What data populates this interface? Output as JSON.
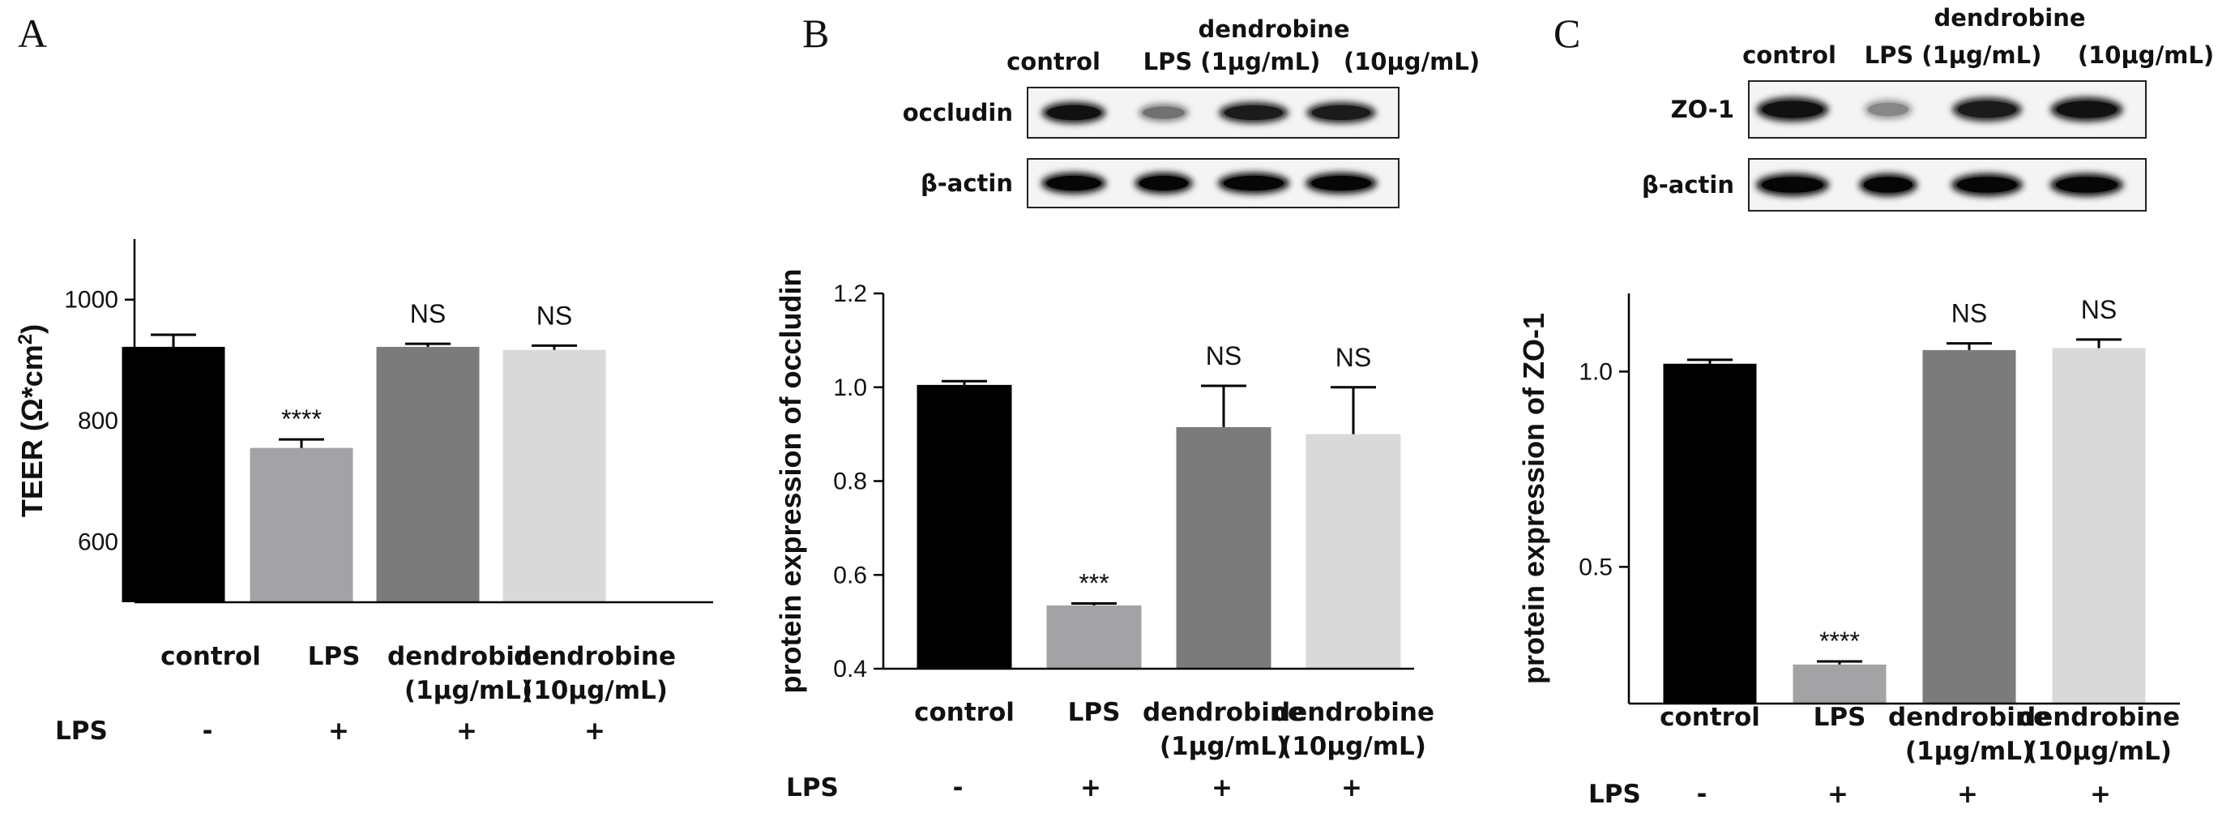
{
  "panels": [
    {
      "letter": "A"
    },
    {
      "letter": "B"
    },
    {
      "letter": "C"
    }
  ],
  "blots": [
    {
      "header": {
        "control": "control",
        "lps": "LPS (1μg/mL)",
        "d1_top": "dendrobine",
        "d2": "(10μg/mL)"
      },
      "rows": [
        "occludin",
        "β-actin"
      ],
      "band_intensity": [
        [
          0.9,
          0.45,
          0.85,
          0.85
        ],
        [
          0.95,
          0.95,
          0.95,
          0.95
        ]
      ]
    },
    {
      "header": {
        "control": "control",
        "lps": "LPS (1μg/mL)",
        "d1_top": "dendrobine",
        "d2": "(10μg/mL)"
      },
      "rows": [
        "ZO-1",
        "β-actin"
      ],
      "band_intensity": [
        [
          0.9,
          0.35,
          0.85,
          0.9
        ],
        [
          0.95,
          0.95,
          0.95,
          0.95
        ]
      ]
    }
  ],
  "chart_data": [
    {
      "type": "bar",
      "ylabel_main": "TEER (Ω*cm",
      "ylabel_sup": "2",
      "ylabel_close": ")",
      "categories": [
        [
          "control"
        ],
        [
          "LPS"
        ],
        [
          "dendrobine",
          "(1μg/mL)"
        ],
        [
          "dendrobine",
          "(10μg/mL)"
        ]
      ],
      "values": [
        922,
        755,
        922,
        917
      ],
      "errors": [
        20,
        14,
        5,
        7
      ],
      "significance": [
        "",
        "****",
        "NS",
        "NS"
      ],
      "colors": [
        "#000000",
        "#a3a3a6",
        "#7b7b7b",
        "#d9d9d9"
      ],
      "ylim": [
        500,
        1100
      ],
      "yticks": [
        600,
        800,
        1000
      ],
      "ytick_labels": [
        "600",
        "800",
        "1000"
      ],
      "lps_label": "LPS",
      "lps_row": [
        "-",
        "+",
        "+",
        "+"
      ]
    },
    {
      "type": "bar",
      "ylabel_main": "protein expression of occludin",
      "categories": [
        [
          "control"
        ],
        [
          "LPS"
        ],
        [
          "dendrobine",
          "(1μg/mL)"
        ],
        [
          "dendrobine",
          "(10μg/mL)"
        ]
      ],
      "values": [
        1.005,
        0.535,
        0.915,
        0.9
      ],
      "errors": [
        0.008,
        0.004,
        0.088,
        0.1
      ],
      "significance": [
        "",
        "***",
        "NS",
        "NS"
      ],
      "colors": [
        "#000000",
        "#a3a3a6",
        "#7b7b7b",
        "#d9d9d9"
      ],
      "ylim": [
        0.4,
        1.2
      ],
      "yticks": [
        0.4,
        0.6,
        0.8,
        1.0,
        1.2
      ],
      "ytick_labels": [
        "0.4",
        "0.6",
        "0.8",
        "1.0",
        "1.2"
      ],
      "lps_label": "LPS",
      "lps_row": [
        "-",
        "+",
        "+",
        "+"
      ]
    },
    {
      "type": "bar",
      "ylabel_main": "protein expression of ZO-1",
      "categories": [
        [
          "control"
        ],
        [
          "LPS"
        ],
        [
          "dendrobine",
          "(1μg/mL)"
        ],
        [
          "dendrobine",
          "(10μg/mL)"
        ]
      ],
      "values": [
        1.02,
        0.25,
        1.055,
        1.06
      ],
      "errors": [
        0.01,
        0.008,
        0.017,
        0.022
      ],
      "significance": [
        "",
        "****",
        "NS",
        "NS"
      ],
      "colors": [
        "#000000",
        "#a3a3a6",
        "#7b7b7b",
        "#d9d9d9"
      ],
      "ylim": [
        0.15,
        1.2
      ],
      "yticks": [
        0.5,
        1.0
      ],
      "ytick_labels": [
        "0.5",
        "1.0"
      ],
      "lps_label": "LPS",
      "lps_row": [
        "-",
        "+",
        "+",
        "+"
      ]
    }
  ]
}
